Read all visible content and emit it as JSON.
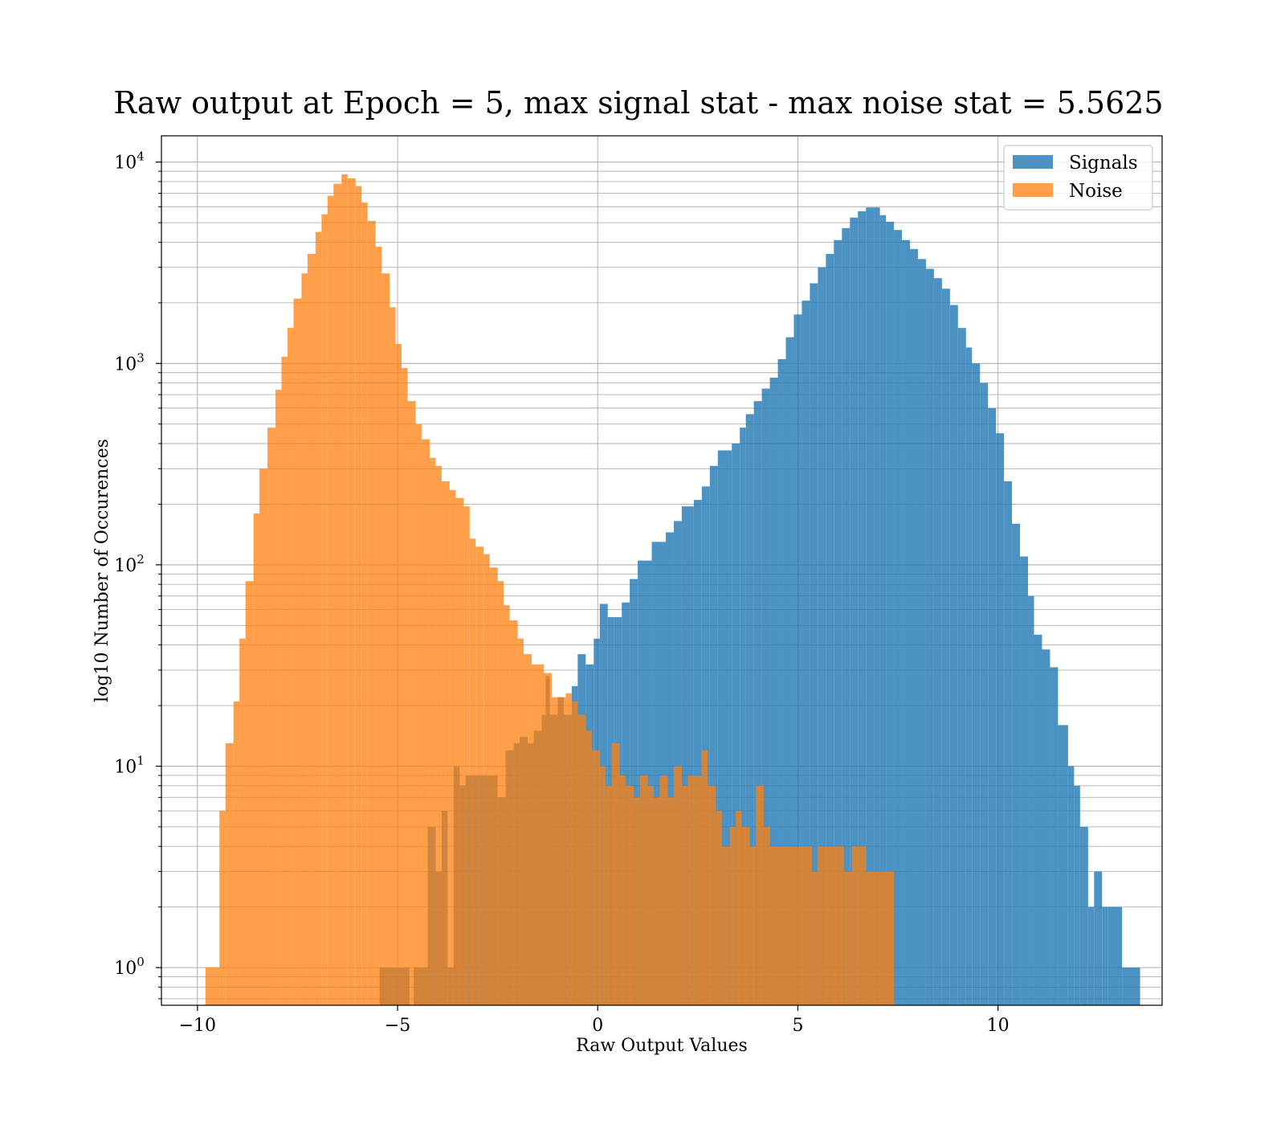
{
  "chart_data": {
    "type": "bar",
    "title": "Raw output at Epoch = 5, max signal stat - max noise stat = 5.5625",
    "xlabel": "Raw Output Values",
    "ylabel": "log10 Number of Occurences",
    "xlim": [
      -10.9,
      14.1
    ],
    "ylim": [
      0.65,
      13500
    ],
    "yscale": "log",
    "grid": true,
    "legend_position": "top-right",
    "xticks": [
      {
        "value": -10,
        "label": "−10"
      },
      {
        "value": -5,
        "label": "−5"
      },
      {
        "value": 0,
        "label": "0"
      },
      {
        "value": 5,
        "label": "5"
      },
      {
        "value": 10,
        "label": "10"
      }
    ],
    "yticks": [
      {
        "value": 1,
        "base": "10",
        "exp": "0"
      },
      {
        "value": 10,
        "base": "10",
        "exp": "1"
      },
      {
        "value": 100,
        "base": "10",
        "exp": "2"
      },
      {
        "value": 1000,
        "base": "10",
        "exp": "3"
      },
      {
        "value": 10000,
        "base": "10",
        "exp": "4"
      }
    ],
    "series": [
      {
        "name": "Signals",
        "color": "#1f77b4",
        "opacity": 0.8,
        "bins": [
          [
            -5.45,
            -5.1,
            1
          ],
          [
            -5.1,
            -4.7,
            1
          ],
          [
            -4.6,
            -4.25,
            1
          ],
          [
            -4.25,
            -4.05,
            5
          ],
          [
            -4.05,
            -3.9,
            3
          ],
          [
            -3.9,
            -3.75,
            6
          ],
          [
            -3.75,
            -3.6,
            1
          ],
          [
            -3.6,
            -3.45,
            10
          ],
          [
            -3.45,
            -3.3,
            8
          ],
          [
            -3.3,
            -2.5,
            9
          ],
          [
            -2.5,
            -2.3,
            7
          ],
          [
            -2.3,
            -2.1,
            12
          ],
          [
            -2.1,
            -1.95,
            13
          ],
          [
            -1.95,
            -1.75,
            14
          ],
          [
            -1.75,
            -1.6,
            13
          ],
          [
            -1.6,
            -1.4,
            15
          ],
          [
            -1.4,
            -1.3,
            18
          ],
          [
            -1.3,
            -1.2,
            28
          ],
          [
            -1.2,
            -1.0,
            18
          ],
          [
            -1.0,
            -0.85,
            22
          ],
          [
            -0.85,
            -0.65,
            18
          ],
          [
            -0.65,
            -0.5,
            25
          ],
          [
            -0.5,
            -0.3,
            36
          ],
          [
            -0.3,
            -0.1,
            32
          ],
          [
            -0.1,
            0.05,
            43
          ],
          [
            0.05,
            0.25,
            64
          ],
          [
            0.25,
            0.4,
            55
          ],
          [
            0.4,
            0.6,
            55
          ],
          [
            0.6,
            0.8,
            65
          ],
          [
            0.8,
            1.0,
            85
          ],
          [
            1.0,
            1.35,
            105
          ],
          [
            1.35,
            1.7,
            130
          ],
          [
            1.7,
            1.9,
            145
          ],
          [
            1.9,
            2.1,
            165
          ],
          [
            2.1,
            2.4,
            195
          ],
          [
            2.4,
            2.6,
            210
          ],
          [
            2.6,
            2.8,
            245
          ],
          [
            2.8,
            3.0,
            310
          ],
          [
            3.0,
            3.35,
            370
          ],
          [
            3.35,
            3.55,
            400
          ],
          [
            3.55,
            3.7,
            480
          ],
          [
            3.7,
            3.9,
            560
          ],
          [
            3.9,
            4.1,
            650
          ],
          [
            4.1,
            4.3,
            750
          ],
          [
            4.3,
            4.5,
            850
          ],
          [
            4.5,
            4.7,
            1050
          ],
          [
            4.7,
            4.9,
            1350
          ],
          [
            4.9,
            5.1,
            1750
          ],
          [
            5.1,
            5.3,
            2050
          ],
          [
            5.3,
            5.5,
            2500
          ],
          [
            5.5,
            5.7,
            3000
          ],
          [
            5.7,
            5.9,
            3500
          ],
          [
            5.9,
            6.1,
            4100
          ],
          [
            6.1,
            6.3,
            4700
          ],
          [
            6.3,
            6.5,
            5300
          ],
          [
            6.5,
            6.7,
            5700
          ],
          [
            6.7,
            6.9,
            5950
          ],
          [
            6.9,
            7.05,
            5950
          ],
          [
            7.05,
            7.2,
            5450
          ],
          [
            7.2,
            7.4,
            5050
          ],
          [
            7.4,
            7.6,
            4600
          ],
          [
            7.6,
            7.8,
            4100
          ],
          [
            7.8,
            8.0,
            3700
          ],
          [
            8.0,
            8.2,
            3300
          ],
          [
            8.2,
            8.4,
            2950
          ],
          [
            8.4,
            8.6,
            2650
          ],
          [
            8.6,
            8.8,
            2350
          ],
          [
            8.8,
            9.0,
            1950
          ],
          [
            9.0,
            9.2,
            1500
          ],
          [
            9.2,
            9.35,
            1200
          ],
          [
            9.35,
            9.55,
            1000
          ],
          [
            9.55,
            9.75,
            800
          ],
          [
            9.75,
            9.95,
            600
          ],
          [
            9.95,
            10.15,
            450
          ],
          [
            10.15,
            10.35,
            260
          ],
          [
            10.35,
            10.55,
            160
          ],
          [
            10.55,
            10.75,
            110
          ],
          [
            10.75,
            10.9,
            70
          ],
          [
            10.9,
            11.1,
            45
          ],
          [
            11.1,
            11.3,
            38
          ],
          [
            11.3,
            11.5,
            31
          ],
          [
            11.5,
            11.75,
            16
          ],
          [
            11.75,
            11.9,
            10
          ],
          [
            11.9,
            12.05,
            8
          ],
          [
            12.05,
            12.25,
            5
          ],
          [
            12.25,
            12.4,
            2
          ],
          [
            12.4,
            12.6,
            3
          ],
          [
            12.6,
            12.75,
            2
          ],
          [
            12.75,
            13.1,
            2
          ],
          [
            13.1,
            13.55,
            1
          ]
        ]
      },
      {
        "name": "Noise",
        "color": "#ff7f0e",
        "opacity": 0.75,
        "bins": [
          [
            -9.8,
            -9.45,
            1
          ],
          [
            -9.45,
            -9.3,
            6
          ],
          [
            -9.3,
            -9.1,
            13
          ],
          [
            -9.1,
            -8.95,
            21
          ],
          [
            -8.95,
            -8.8,
            43
          ],
          [
            -8.8,
            -8.6,
            83
          ],
          [
            -8.6,
            -8.45,
            180
          ],
          [
            -8.45,
            -8.25,
            300
          ],
          [
            -8.25,
            -8.05,
            480
          ],
          [
            -8.05,
            -7.9,
            740
          ],
          [
            -7.9,
            -7.75,
            1080
          ],
          [
            -7.75,
            -7.6,
            1500
          ],
          [
            -7.6,
            -7.4,
            2100
          ],
          [
            -7.4,
            -7.25,
            2800
          ],
          [
            -7.25,
            -7.05,
            3500
          ],
          [
            -7.05,
            -6.9,
            4500
          ],
          [
            -6.9,
            -6.75,
            5500
          ],
          [
            -6.75,
            -6.6,
            6800
          ],
          [
            -6.6,
            -6.4,
            7800
          ],
          [
            -6.4,
            -6.25,
            8700
          ],
          [
            -6.25,
            -6.05,
            8300
          ],
          [
            -6.05,
            -5.9,
            7600
          ],
          [
            -5.9,
            -5.75,
            6300
          ],
          [
            -5.75,
            -5.55,
            5100
          ],
          [
            -5.55,
            -5.4,
            3800
          ],
          [
            -5.4,
            -5.2,
            2800
          ],
          [
            -5.2,
            -5.05,
            1900
          ],
          [
            -5.05,
            -4.9,
            1250
          ],
          [
            -4.9,
            -4.75,
            950
          ],
          [
            -4.75,
            -4.55,
            650
          ],
          [
            -4.55,
            -4.4,
            500
          ],
          [
            -4.4,
            -4.2,
            420
          ],
          [
            -4.2,
            -4.05,
            340
          ],
          [
            -4.05,
            -3.9,
            310
          ],
          [
            -3.9,
            -3.7,
            260
          ],
          [
            -3.7,
            -3.55,
            235
          ],
          [
            -3.55,
            -3.35,
            215
          ],
          [
            -3.35,
            -3.2,
            195
          ],
          [
            -3.2,
            -3.05,
            135
          ],
          [
            -3.05,
            -2.85,
            123
          ],
          [
            -2.85,
            -2.7,
            113
          ],
          [
            -2.7,
            -2.5,
            97
          ],
          [
            -2.5,
            -2.35,
            83
          ],
          [
            -2.35,
            -2.2,
            63
          ],
          [
            -2.2,
            -2.0,
            53
          ],
          [
            -2.0,
            -1.85,
            43
          ],
          [
            -1.85,
            -1.65,
            36
          ],
          [
            -1.65,
            -1.5,
            32
          ],
          [
            -1.5,
            -1.35,
            32
          ],
          [
            -1.35,
            -1.15,
            29
          ],
          [
            -1.15,
            -1.0,
            22
          ],
          [
            -1.0,
            -0.8,
            22
          ],
          [
            -0.8,
            -0.65,
            23
          ],
          [
            -0.65,
            -0.5,
            21
          ],
          [
            -0.5,
            -0.3,
            18
          ],
          [
            -0.3,
            -0.15,
            15
          ],
          [
            -0.15,
            0.05,
            12
          ],
          [
            0.05,
            0.2,
            10
          ],
          [
            0.2,
            0.35,
            8
          ],
          [
            0.35,
            0.55,
            13
          ],
          [
            0.55,
            0.7,
            9
          ],
          [
            0.7,
            0.9,
            8
          ],
          [
            0.9,
            1.05,
            7
          ],
          [
            1.05,
            1.25,
            9
          ],
          [
            1.25,
            1.4,
            8
          ],
          [
            1.4,
            1.55,
            7
          ],
          [
            1.55,
            1.75,
            9
          ],
          [
            1.75,
            1.9,
            7
          ],
          [
            1.9,
            2.1,
            10
          ],
          [
            2.1,
            2.25,
            8
          ],
          [
            2.25,
            2.45,
            9
          ],
          [
            2.45,
            2.6,
            9
          ],
          [
            2.6,
            2.75,
            12
          ],
          [
            2.75,
            2.95,
            8
          ],
          [
            2.95,
            3.1,
            6
          ],
          [
            3.1,
            3.3,
            4
          ],
          [
            3.3,
            3.45,
            5
          ],
          [
            3.45,
            3.6,
            6
          ],
          [
            3.6,
            3.8,
            5
          ],
          [
            3.8,
            3.95,
            4
          ],
          [
            3.95,
            4.15,
            8
          ],
          [
            4.15,
            4.3,
            5
          ],
          [
            4.3,
            4.5,
            4
          ],
          [
            4.5,
            4.65,
            4
          ],
          [
            4.65,
            4.8,
            4
          ],
          [
            4.8,
            5.0,
            4
          ],
          [
            5.0,
            5.15,
            4
          ],
          [
            5.15,
            5.35,
            4
          ],
          [
            5.35,
            5.5,
            3
          ],
          [
            5.5,
            5.65,
            4
          ],
          [
            5.65,
            5.85,
            4
          ],
          [
            5.85,
            6.0,
            4
          ],
          [
            6.0,
            6.15,
            4
          ],
          [
            6.15,
            6.35,
            3
          ],
          [
            6.35,
            6.5,
            4
          ],
          [
            6.5,
            6.7,
            4
          ],
          [
            6.7,
            6.85,
            3
          ],
          [
            6.85,
            7.05,
            3
          ],
          [
            7.05,
            7.2,
            3
          ],
          [
            7.2,
            7.4,
            3
          ]
        ]
      }
    ]
  }
}
